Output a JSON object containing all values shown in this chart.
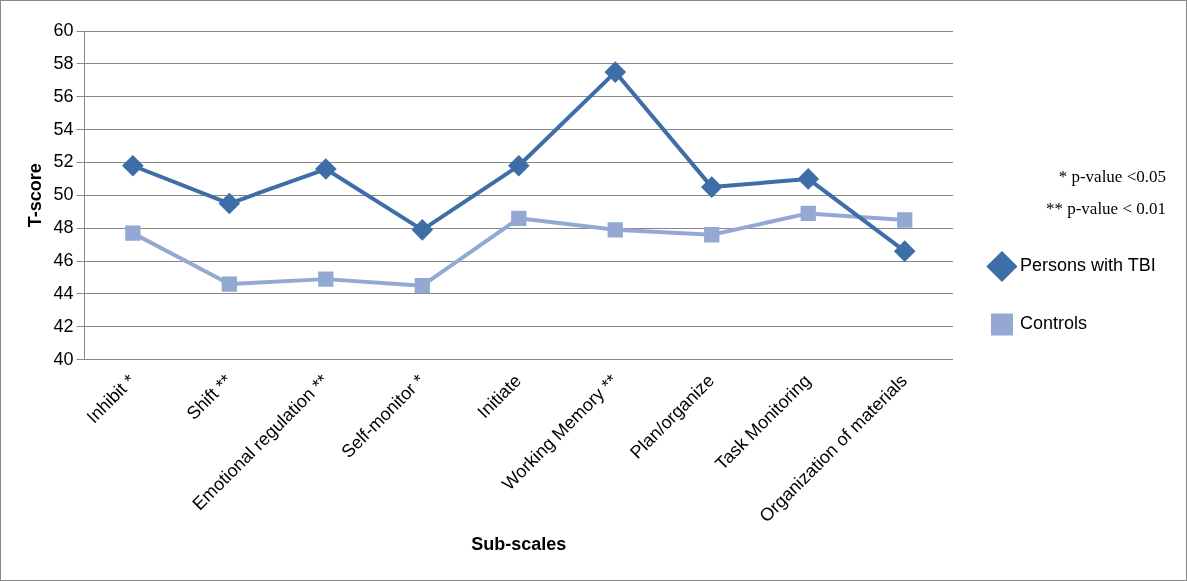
{
  "chart_data": {
    "type": "line",
    "xlabel": "Sub-scales",
    "ylabel": "T-score",
    "categories": [
      "Inhibit *",
      "Shift **",
      "Emotional regulation **",
      "Self-monitor *",
      "Initiate",
      "Working Memory **",
      "Plan/organize",
      "Task Monitoring",
      "Organization of materials"
    ],
    "series": [
      {
        "name": "Persons with TBI",
        "color": "#3e6ea8",
        "marker": "diamond",
        "values": [
          51.8,
          49.5,
          51.6,
          47.9,
          51.8,
          57.5,
          50.5,
          51.0,
          46.6
        ]
      },
      {
        "name": "Controls",
        "color": "#93a9d4",
        "marker": "square",
        "values": [
          47.7,
          44.6,
          44.9,
          44.5,
          48.6,
          47.9,
          47.6,
          48.9,
          48.5
        ]
      }
    ],
    "ylim": [
      40,
      60
    ],
    "yticks": [
      40,
      42,
      44,
      46,
      48,
      50,
      52,
      54,
      56,
      58,
      60
    ],
    "grid": "y",
    "legend": "right",
    "annotations": [
      "* p-value <0.05",
      "** p-value < 0.01"
    ]
  }
}
